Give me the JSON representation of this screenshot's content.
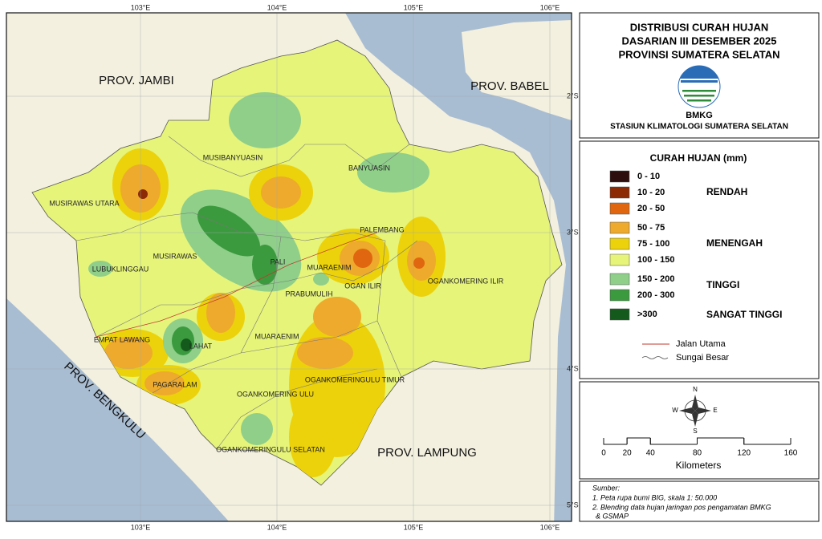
{
  "map": {
    "lon_labels": [
      "103°E",
      "104°E",
      "105°E",
      "106°E"
    ],
    "lat_labels": [
      "2°S",
      "3°S",
      "4°S",
      "5°S"
    ],
    "province_labels": [
      "PROV. JAMBI",
      "PROV. BABEL",
      "PROV. BENGKULU",
      "PROV. LAMPUNG"
    ],
    "region_labels": [
      "MUSIBANYUASIN",
      "BANYUASIN",
      "MUSIRAWAS UTARA",
      "MUSIRAWAS",
      "LUBUKLINGGAU",
      "PALEMBANG",
      "PALI",
      "MUARAENIM",
      "OGAN ILIR",
      "PRABUMULIH",
      "OGANKOMERING ILIR",
      "EMPAT LAWANG",
      "LAHAT",
      "MUARAENIM",
      "PAGARALAM",
      "OGANKOMERINGULU TIMUR",
      "OGANKOMERING ULU",
      "OGANKOMERINGULU SELATAN"
    ]
  },
  "header": {
    "title_lines": [
      "DISTRIBUSI CURAH HUJAN",
      "DASARIAN III DESEMBER 2025",
      "PROVINSI SUMATERA SELATAN"
    ],
    "logo_text": "BMKG",
    "station": "STASIUN KLIMATOLOGI SUMATERA SELATAN"
  },
  "legend": {
    "title": "CURAH HUJAN (mm)",
    "classes": [
      {
        "label": "0 - 10",
        "color": "#2d0d0d"
      },
      {
        "label": "10 - 20",
        "color": "#8b2a05"
      },
      {
        "label": "20 - 50",
        "color": "#e0660f"
      },
      {
        "label": "50 - 75",
        "color": "#eeaa2c"
      },
      {
        "label": "75 - 100",
        "color": "#ecd20a"
      },
      {
        "label": "100 - 150",
        "color": "#e6f47a"
      },
      {
        "label": "150 - 200",
        "color": "#8fcf8a"
      },
      {
        "label": "200 - 300",
        "color": "#3c9a3e"
      },
      {
        "label": ">300",
        "color": "#145a1c"
      }
    ],
    "groups": [
      "RENDAH",
      "MENENGAH",
      "TINGGI",
      "SANGAT TINGGI"
    ],
    "lines": [
      "Jalan Utama",
      "Sungai Besar"
    ]
  },
  "scale": {
    "labels": [
      0,
      20,
      40,
      80,
      120,
      160
    ],
    "unit": "Kilometers",
    "compass": [
      "N",
      "S",
      "E",
      "W"
    ]
  },
  "source": {
    "title": "Sumber:",
    "lines": [
      "1. Peta rupa bumi BIG, skala 1: 50.000",
      "2. Blending data hujan jaringan pos pengamatan BMKG",
      "& GSMAP"
    ]
  }
}
